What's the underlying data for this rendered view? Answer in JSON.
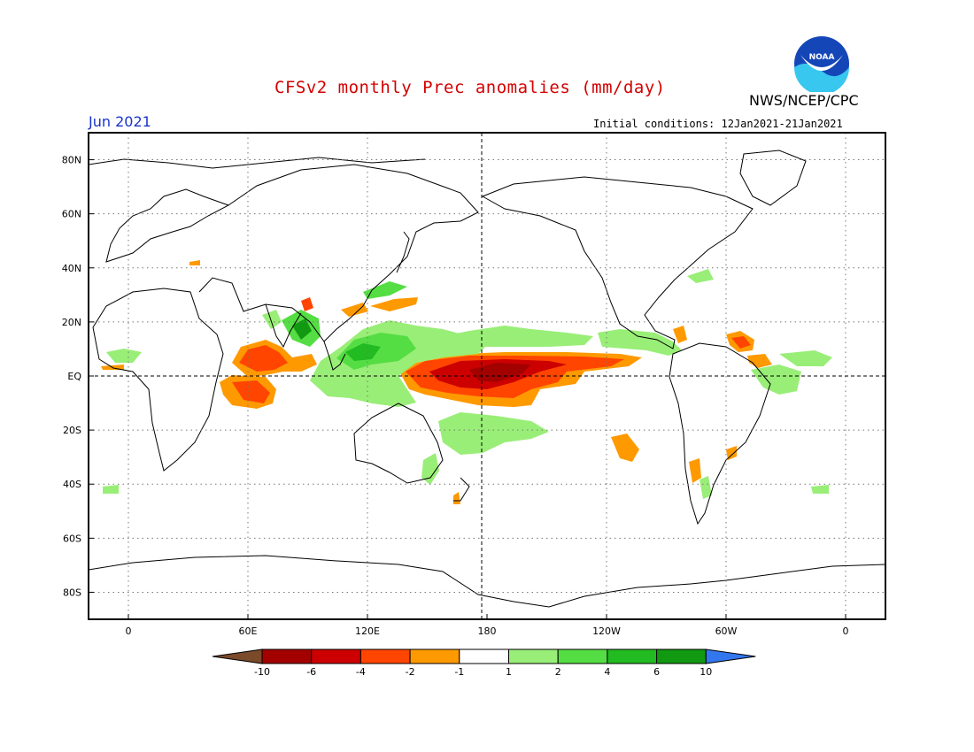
{
  "title": "CFSv2 monthly Prec anomalies (mm/day)",
  "agency": "NWS/NCEP/CPC",
  "logo_text": "NOAA",
  "valid_month": "Jun 2021",
  "initial_conditions": "Initial conditions: 12Jan2021-21Jan2021",
  "map": {
    "projection": "equirectangular",
    "lon_range": [
      -20,
      380
    ],
    "lat_range": [
      -90,
      90
    ],
    "lat_labels": [
      "80N",
      "60N",
      "40N",
      "20N",
      "EQ",
      "20S",
      "40S",
      "60S",
      "80S"
    ],
    "lon_labels": [
      "0",
      "60E",
      "120E",
      "180",
      "120W",
      "60W",
      "0"
    ],
    "grid": "dotted"
  },
  "colorbar": {
    "labels": [
      "-10",
      "-6",
      "-4",
      "-2",
      "-1",
      "1",
      "2",
      "4",
      "6",
      "10"
    ],
    "colors": [
      "#7a4a2a",
      "#a30000",
      "#cc0000",
      "#ff4500",
      "#ff9900",
      "#ffffff",
      "#99ee77",
      "#55dd44",
      "#22bb22",
      "#119911",
      "#3377ee"
    ]
  },
  "colors": {
    "title": "#d40000",
    "month": "#1a33cc"
  }
}
